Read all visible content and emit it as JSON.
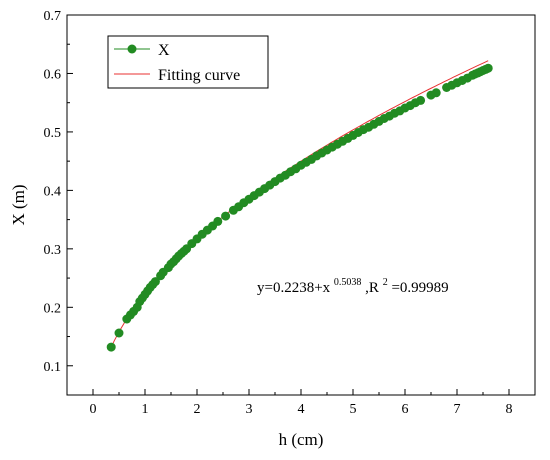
{
  "chart_data": {
    "type": "scatter",
    "title": "",
    "xlabel": "h (cm)",
    "ylabel": "X (m)",
    "xlim": [
      -0.5,
      8.5
    ],
    "ylim": [
      0.05,
      0.7
    ],
    "xticks": [
      "0",
      "1",
      "2",
      "3",
      "4",
      "5",
      "6",
      "7",
      "8"
    ],
    "yticks": [
      "0.1",
      "0.2",
      "0.3",
      "0.4",
      "0.5",
      "0.6",
      "0.7"
    ],
    "grid": false,
    "legend_position": "top-left",
    "series": [
      {
        "name": "X",
        "marker": "circle",
        "color": "#228B22",
        "x": [
          0.35,
          0.5,
          0.65,
          0.72,
          0.78,
          0.85,
          0.9,
          0.95,
          1.0,
          1.05,
          1.1,
          1.15,
          1.2,
          1.3,
          1.35,
          1.45,
          1.5,
          1.55,
          1.6,
          1.65,
          1.7,
          1.75,
          1.8,
          1.9,
          2.0,
          2.1,
          2.2,
          2.3,
          2.4,
          2.55,
          2.7,
          2.8,
          2.9,
          3.0,
          3.1,
          3.2,
          3.3,
          3.4,
          3.5,
          3.6,
          3.7,
          3.8,
          3.9,
          4.0,
          4.1,
          4.2,
          4.3,
          4.4,
          4.5,
          4.6,
          4.7,
          4.8,
          4.9,
          5.0,
          5.1,
          5.2,
          5.3,
          5.4,
          5.5,
          5.6,
          5.7,
          5.8,
          5.9,
          6.0,
          6.1,
          6.2,
          6.3,
          6.5,
          6.6,
          6.8,
          6.9,
          7.0,
          7.1,
          7.2,
          7.3,
          7.35,
          7.4,
          7.45,
          7.5,
          7.55,
          7.6
        ],
        "y": [
          0.132,
          0.156,
          0.18,
          0.187,
          0.193,
          0.2,
          0.21,
          0.216,
          0.222,
          0.228,
          0.234,
          0.239,
          0.244,
          0.254,
          0.26,
          0.268,
          0.274,
          0.278,
          0.283,
          0.288,
          0.292,
          0.296,
          0.3,
          0.309,
          0.317,
          0.325,
          0.332,
          0.339,
          0.347,
          0.356,
          0.366,
          0.372,
          0.379,
          0.385,
          0.391,
          0.397,
          0.403,
          0.409,
          0.415,
          0.421,
          0.426,
          0.432,
          0.437,
          0.443,
          0.448,
          0.453,
          0.459,
          0.464,
          0.469,
          0.474,
          0.479,
          0.484,
          0.489,
          0.494,
          0.499,
          0.504,
          0.508,
          0.513,
          0.518,
          0.523,
          0.527,
          0.532,
          0.536,
          0.541,
          0.545,
          0.55,
          0.554,
          0.563,
          0.567,
          0.576,
          0.58,
          0.584,
          0.588,
          0.592,
          0.597,
          0.599,
          0.601,
          0.603,
          0.605,
          0.607,
          0.609
        ]
      },
      {
        "name": "Fitting curve",
        "type": "line",
        "color": "#e83030",
        "equation": {
          "a": 0.2238,
          "b": 0.5038
        }
      }
    ],
    "annotation": {
      "base": "y=0.2238+x",
      "exp1": "0.5038",
      "mid": ",R",
      "exp2": "2",
      "tail": "=0.99989"
    }
  }
}
